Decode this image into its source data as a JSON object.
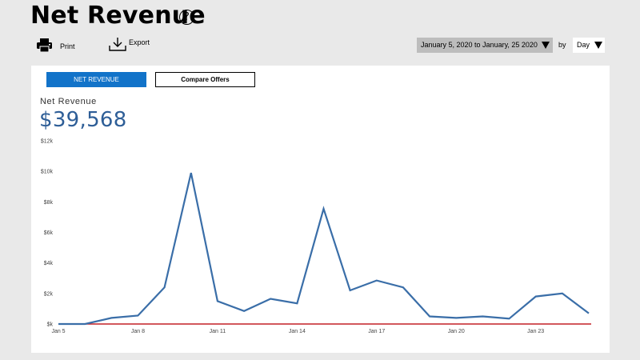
{
  "header": {
    "title": "Net Revenue",
    "help_icon": "question-circle-icon"
  },
  "toolbar": {
    "print_label": "Print",
    "print_icon": "printer-icon",
    "export_label": "Export",
    "export_icon": "download-icon"
  },
  "filters": {
    "date_range": "January 5, 2020 to January, 25 2020",
    "by_label": "by",
    "interval": "Day"
  },
  "tabs": [
    {
      "label": "NET REVENUE",
      "active": true
    },
    {
      "label": "Compare Offers",
      "active": false
    }
  ],
  "metric": {
    "label": "Net Revenue",
    "value": "$39,568"
  },
  "colors": {
    "accent": "#1273c9",
    "line": "#3a6ea8",
    "baseline": "#c42127",
    "value_text": "#2e5e97"
  },
  "chart_data": {
    "type": "line",
    "x": [
      "Jan 5",
      "Jan 6",
      "Jan 7",
      "Jan 8",
      "Jan 9",
      "Jan 10",
      "Jan 11",
      "Jan 12",
      "Jan 13",
      "Jan 14",
      "Jan 15",
      "Jan 16",
      "Jan 17",
      "Jan 18",
      "Jan 19",
      "Jan 20",
      "Jan 21",
      "Jan 22",
      "Jan 23",
      "Jan 24",
      "Jan 25"
    ],
    "x_tick_labels": [
      "Jan 5",
      "Jan 8",
      "Jan 11",
      "Jan 14",
      "Jan 17",
      "Jan 20",
      "Jan 23"
    ],
    "series": [
      {
        "values": [
          0,
          0,
          400,
          550,
          2400,
          9900,
          1500,
          850,
          1650,
          1350,
          7550,
          2200,
          2850,
          2400,
          500,
          400,
          500,
          350,
          1800,
          2000,
          700
        ]
      }
    ],
    "ylim": [
      0,
      12000
    ],
    "y_ticks": [
      0,
      2000,
      4000,
      6000,
      8000,
      10000,
      12000
    ],
    "y_tick_labels": [
      "$k",
      "$2k",
      "$4k",
      "$6k",
      "$8k",
      "$10k",
      "$12k"
    ],
    "grid": false
  }
}
